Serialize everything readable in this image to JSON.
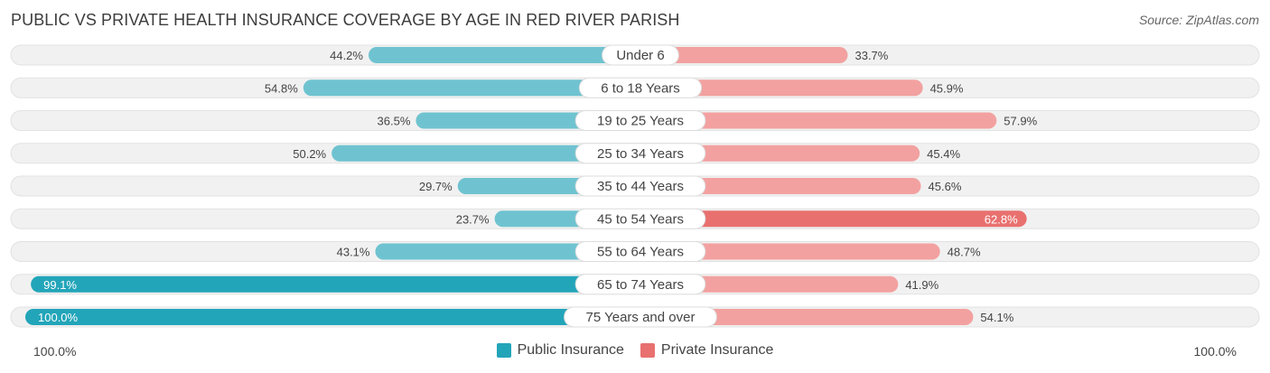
{
  "header": {
    "title": "PUBLIC VS PRIVATE HEALTH INSURANCE COVERAGE BY AGE IN RED RIVER PARISH",
    "source": "Source: ZipAtlas.com"
  },
  "axis": {
    "left_label": "100.0%",
    "right_label": "100.0%"
  },
  "colors": {
    "public": "#6fc3d0",
    "public_strong": "#23a5b9",
    "private": "#f2a1a0",
    "private_strong": "#e8716f",
    "track": "#f1f1f1"
  },
  "chart_data": {
    "type": "bar",
    "orientation": "horizontal-diverging",
    "title": "PUBLIC VS PRIVATE HEALTH INSURANCE COVERAGE BY AGE IN RED RIVER PARISH",
    "xlim": [
      -100,
      100
    ],
    "categories": [
      "Under 6",
      "6 to 18 Years",
      "19 to 25 Years",
      "25 to 34 Years",
      "35 to 44 Years",
      "45 to 54 Years",
      "55 to 64 Years",
      "65 to 74 Years",
      "75 Years and over"
    ],
    "series": [
      {
        "name": "Public Insurance",
        "values": [
          44.2,
          54.8,
          36.5,
          50.2,
          29.7,
          23.7,
          43.1,
          99.1,
          100.0
        ],
        "labels": [
          "44.2%",
          "54.8%",
          "36.5%",
          "50.2%",
          "29.7%",
          "23.7%",
          "43.1%",
          "99.1%",
          "100.0%"
        ]
      },
      {
        "name": "Private Insurance",
        "values": [
          33.7,
          45.9,
          57.9,
          45.4,
          45.6,
          62.8,
          48.7,
          41.9,
          54.1
        ],
        "labels": [
          "33.7%",
          "45.9%",
          "57.9%",
          "45.4%",
          "45.6%",
          "62.8%",
          "48.7%",
          "41.9%",
          "54.1%"
        ]
      }
    ],
    "legend": [
      "Public Insurance",
      "Private Insurance"
    ],
    "legend_position": "bottom-center"
  }
}
